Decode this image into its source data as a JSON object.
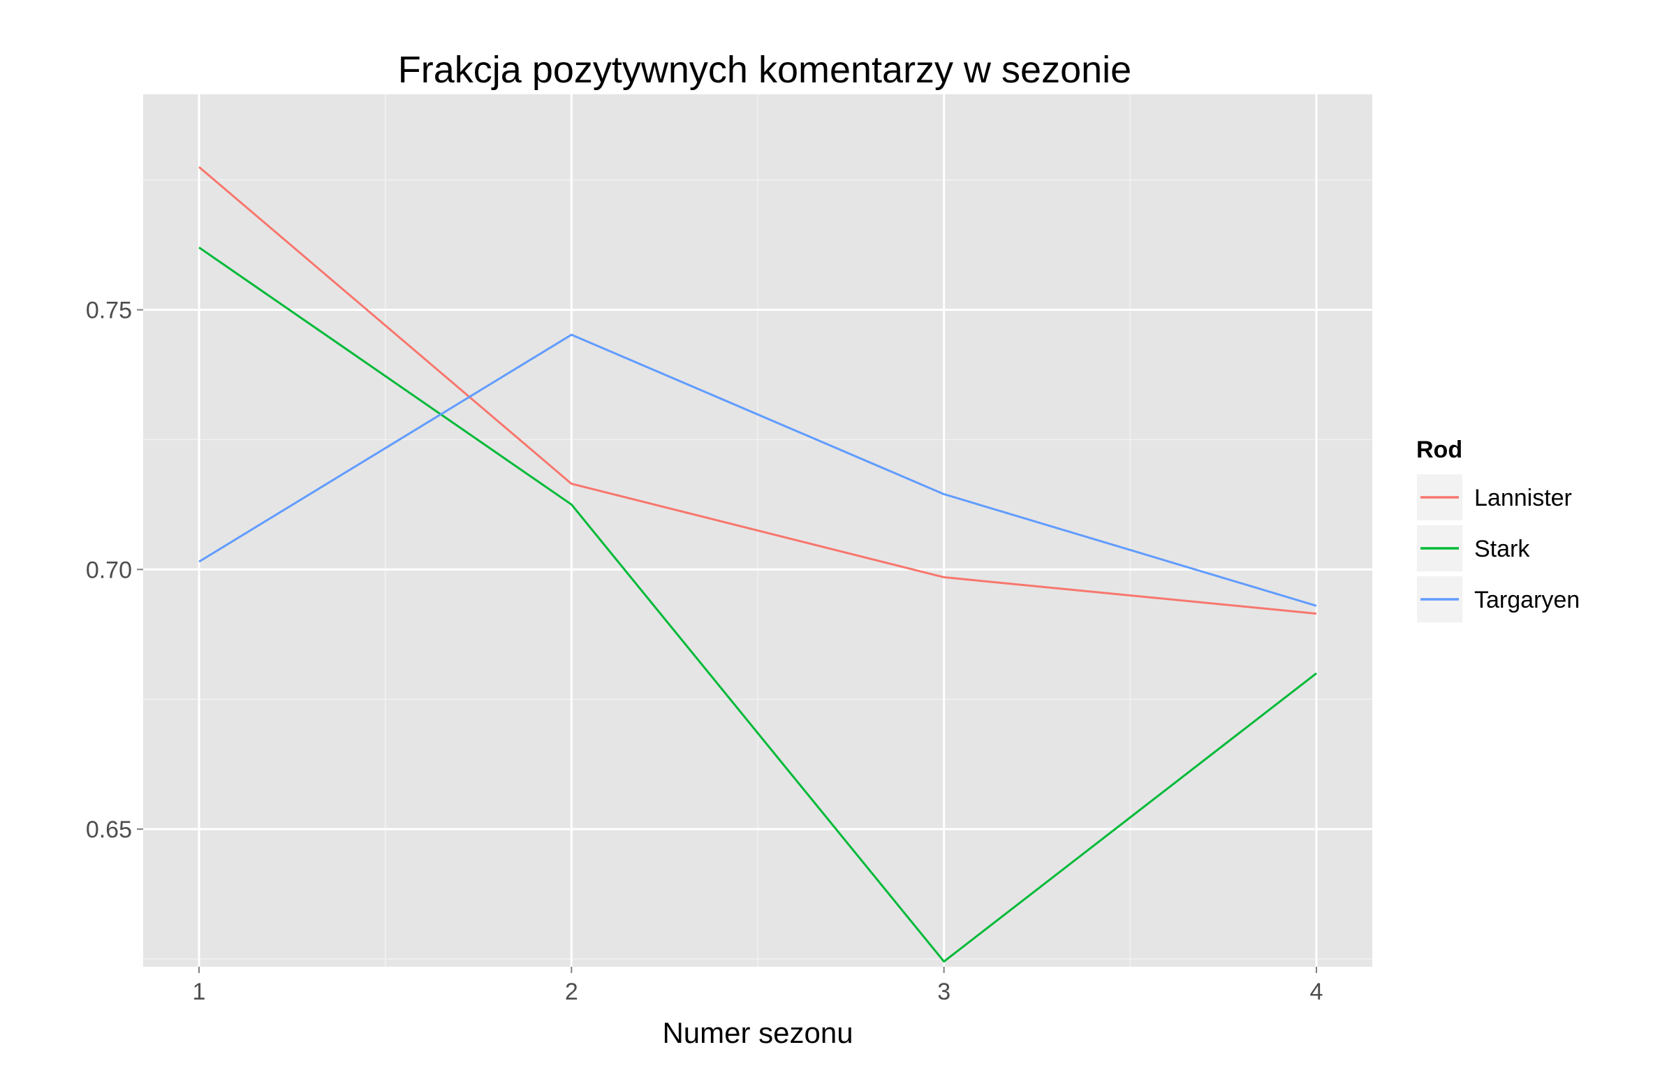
{
  "chart_data": {
    "type": "line",
    "title": "Frakcja pozytywnych komentarzy w sezonie",
    "xlabel": "Numer sezonu",
    "ylabel": "",
    "x": [
      1,
      2,
      3,
      4
    ],
    "x_tick_labels": [
      "1",
      "2",
      "3",
      "4"
    ],
    "y_ticks": [
      0.65,
      0.7,
      0.75
    ],
    "y_tick_labels": [
      "0.65",
      "0.70",
      "0.75"
    ],
    "xlim": [
      0.85,
      4.15
    ],
    "ylim": [
      0.6235,
      0.7915
    ],
    "grid": true,
    "legend": {
      "title": "Rod",
      "position": "right"
    },
    "series": [
      {
        "name": "Lannister",
        "color": "#F8766D",
        "values": [
          0.7775,
          0.7165,
          0.6985,
          0.6915
        ]
      },
      {
        "name": "Stark",
        "color": "#00BA38",
        "values": [
          0.762,
          0.7125,
          0.6245,
          0.68
        ]
      },
      {
        "name": "Targaryen",
        "color": "#619CFF",
        "values": [
          0.7015,
          0.7452,
          0.7145,
          0.693
        ]
      }
    ]
  }
}
